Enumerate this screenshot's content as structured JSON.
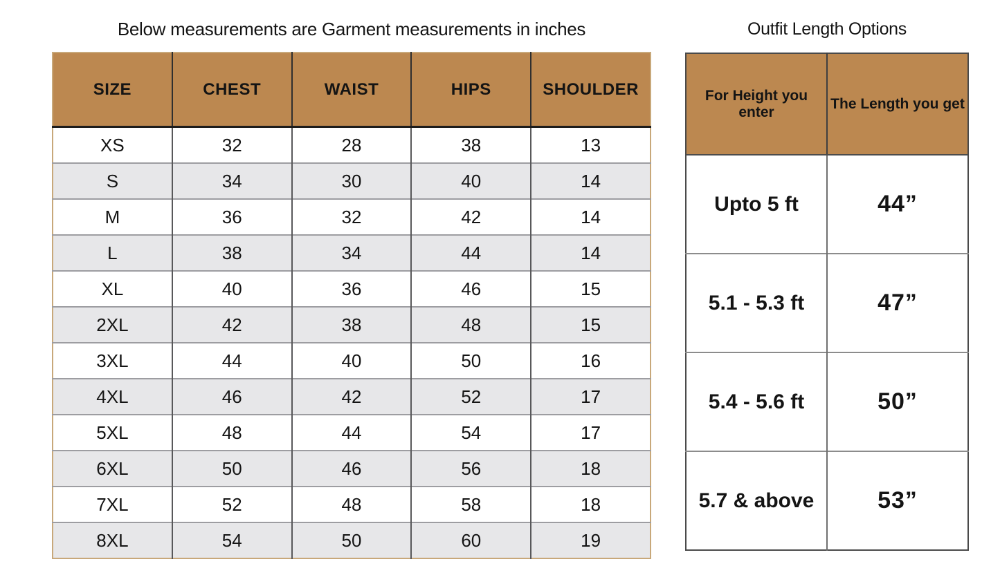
{
  "chart_data": [
    {
      "type": "table",
      "title": "Below measurements are Garment measurements in inches",
      "unit": "inches",
      "columns": [
        "SIZE",
        "CHEST",
        "WAIST",
        "HIPS",
        "SHOULDER"
      ],
      "rows": [
        [
          "XS",
          "32",
          "28",
          "38",
          "13"
        ],
        [
          "S",
          "34",
          "30",
          "40",
          "14"
        ],
        [
          "M",
          "36",
          "32",
          "42",
          "14"
        ],
        [
          "L",
          "38",
          "34",
          "44",
          "14"
        ],
        [
          "XL",
          "40",
          "36",
          "46",
          "15"
        ],
        [
          "2XL",
          "42",
          "38",
          "48",
          "15"
        ],
        [
          "3XL",
          "44",
          "40",
          "50",
          "16"
        ],
        [
          "4XL",
          "46",
          "42",
          "52",
          "17"
        ],
        [
          "5XL",
          "48",
          "44",
          "54",
          "17"
        ],
        [
          "6XL",
          "50",
          "46",
          "56",
          "18"
        ],
        [
          "7XL",
          "52",
          "48",
          "58",
          "18"
        ],
        [
          "8XL",
          "54",
          "50",
          "60",
          "19"
        ]
      ],
      "layout_hints": {
        "striped_rows": true,
        "stripe_pattern": "even rows gray"
      }
    },
    {
      "type": "table",
      "title": "Outfit Length Options",
      "columns": [
        "For Height you enter",
        "The Length you get"
      ],
      "rows": [
        [
          "Upto 5 ft",
          "44”"
        ],
        [
          "5.1 - 5.3 ft",
          "47”"
        ],
        [
          "5.4 - 5.6 ft",
          "50”"
        ],
        [
          "5.7 & above",
          "53”"
        ]
      ]
    }
  ],
  "colors": {
    "header_fill": "#bc8850",
    "stripe_fill": "#e7e7e9",
    "garment_outer_border": "#c8a87a",
    "length_outer_border": "#4a4a4a",
    "header_underline": "#1c1c1c",
    "text": "#141414"
  }
}
